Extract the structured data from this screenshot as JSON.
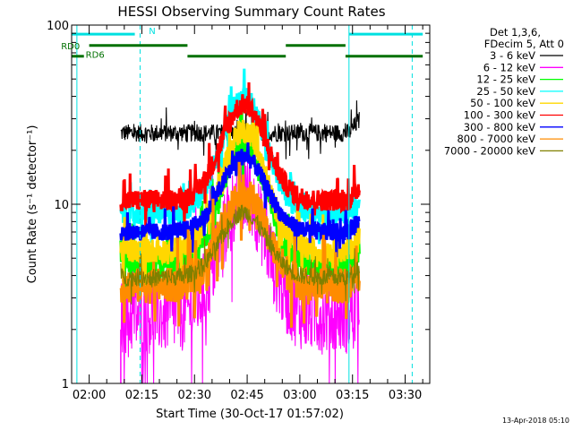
{
  "chart_data": {
    "type": "line",
    "title": "HESSI Observing Summary Count Rates",
    "xlabel": "Start Time (30-Oct-17 01:57:02)",
    "ylabel": "Count Rate (s⁻¹ detector⁻¹)",
    "ylog": true,
    "ylim": [
      1,
      100
    ],
    "xlim_minutes_after_0200": [
      -5,
      97
    ],
    "xticks": [
      {
        "label": "02:00",
        "t": 0
      },
      {
        "label": "02:15",
        "t": 15
      },
      {
        "label": "02:30",
        "t": 30
      },
      {
        "label": "02:45",
        "t": 45
      },
      {
        "label": "03:00",
        "t": 60
      },
      {
        "label": "03:15",
        "t": 75
      },
      {
        "label": "03:30",
        "t": 90
      }
    ],
    "yticks": [
      {
        "label": "1",
        "v": 1
      },
      {
        "label": "10",
        "v": 10
      },
      {
        "label": "100",
        "v": 100
      }
    ],
    "legend_header": [
      "Det 1,3,6,",
      "FDecim 5, Att 0"
    ],
    "data_start_minute": 9,
    "data_end_minute": 77,
    "peak_minute": 44,
    "series": [
      {
        "name": "3 - 6 keV",
        "color": "#000000",
        "baseline": 25,
        "peak": 25,
        "noise": 0.05,
        "width": 1
      },
      {
        "name": "6 - 12 keV",
        "color": "#ff00ff",
        "baseline": 2.4,
        "peak": 11.5,
        "noise": 0.22,
        "width": 1
      },
      {
        "name": "12 - 25 keV",
        "color": "#00ff00",
        "baseline": 4.6,
        "peak": 22,
        "noise": 0.08,
        "width": 5
      },
      {
        "name": "25 - 50 keV",
        "color": "#00ffff",
        "baseline": 8.8,
        "peak": 40,
        "noise": 0.06,
        "width": 5
      },
      {
        "name": "50 - 100 keV",
        "color": "#ffd700",
        "baseline": 5.5,
        "peak": 26,
        "noise": 0.07,
        "width": 5
      },
      {
        "name": "100 - 300 keV",
        "color": "#ff0000",
        "baseline": 10.5,
        "peak": 36,
        "noise": 0.06,
        "width": 5
      },
      {
        "name": "300 - 800 keV",
        "color": "#0000ff",
        "baseline": 7.0,
        "peak": 18.5,
        "noise": 0.05,
        "width": 5
      },
      {
        "name": "800 - 7000 keV",
        "color": "#ff8c00",
        "baseline": 3.5,
        "peak": 11.5,
        "noise": 0.1,
        "width": 5
      },
      {
        "name": "7000 - 20000 keV",
        "color": "#808000",
        "baseline": 3.9,
        "peak": 9,
        "noise": 0.05,
        "width": 1
      }
    ],
    "flags": [
      {
        "name": "N",
        "color": "#00e0e0",
        "level": 89,
        "segments": [
          [
            -5,
            13
          ],
          [
            74,
            95
          ]
        ]
      },
      {
        "name": "RD0",
        "color": "#007000",
        "level": 77,
        "segments": [
          [
            0,
            28
          ],
          [
            56,
            73
          ]
        ]
      },
      {
        "name": "RD6",
        "color": "#007000",
        "level": 67,
        "segments": [
          [
            -5,
            -1.5
          ],
          [
            28,
            56
          ],
          [
            73,
            95
          ]
        ]
      }
    ],
    "flag_labels": [
      {
        "text": "N",
        "t": 17,
        "v": 92
      },
      {
        "text": "RD0",
        "t": -8,
        "v": 76
      },
      {
        "text": "RD6",
        "t": -1,
        "v": 68
      }
    ],
    "vlines": [
      {
        "t": -3.5,
        "color": "#00e0e0",
        "style": "solid"
      },
      {
        "t": 14.5,
        "color": "#00e0e0",
        "style": "dashed"
      },
      {
        "t": 74,
        "color": "#00e0e0",
        "style": "solid"
      },
      {
        "t": 92,
        "color": "#00e0e0",
        "style": "dashed"
      }
    ]
  },
  "footer": {
    "timestamp": "13-Apr-2018 05:10"
  }
}
